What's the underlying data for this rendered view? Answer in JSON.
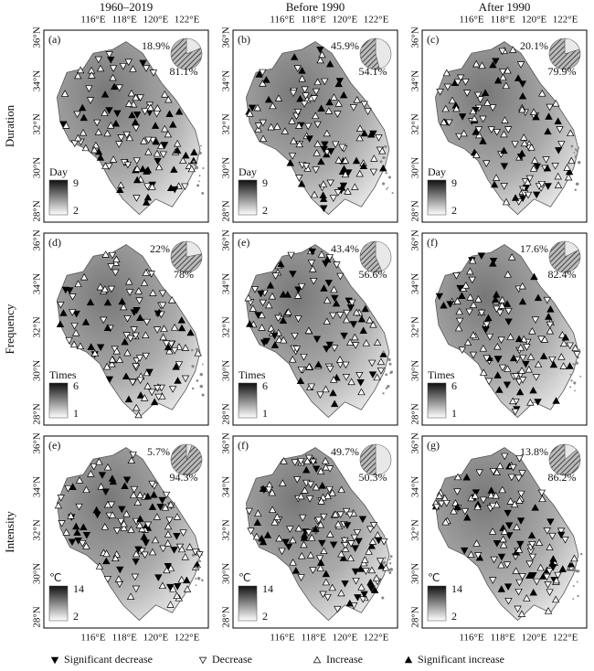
{
  "column_titles": [
    "1960–2019",
    "Before 1990",
    "After 1990"
  ],
  "lon_ticks": [
    "116°E",
    "118°E",
    "120°E",
    "122°E"
  ],
  "lat_ticks": [
    "36°N",
    "34°N",
    "32°N",
    "30°N",
    "28°N"
  ],
  "rows": [
    {
      "title": "Duration",
      "unit": "Day",
      "max": 9,
      "min": 2,
      "panels": [
        {
          "label": "(a)",
          "pie": {
            "values": [
              18.9,
              81.1
            ],
            "value_labels": [
              "18.9%",
              "81.1%"
            ]
          }
        },
        {
          "label": "(b)",
          "pie": {
            "values": [
              45.9,
              54.1
            ],
            "value_labels": [
              "45.9%",
              "54.1%"
            ]
          }
        },
        {
          "label": "(c)",
          "pie": {
            "values": [
              20.1,
              79.9
            ],
            "value_labels": [
              "20.1%",
              "79.9%"
            ]
          }
        }
      ]
    },
    {
      "title": "Frequency",
      "unit": "Times",
      "max": 6,
      "min": 1,
      "panels": [
        {
          "label": "(d)",
          "pie": {
            "values": [
              22,
              78
            ],
            "value_labels": [
              "22%",
              "78%"
            ]
          }
        },
        {
          "label": "(e)",
          "pie": {
            "values": [
              43.4,
              56.6
            ],
            "value_labels": [
              "43.4%",
              "56.6%"
            ]
          }
        },
        {
          "label": "(f)",
          "pie": {
            "values": [
              17.6,
              82.4
            ],
            "value_labels": [
              "17.6%",
              "82.4%"
            ]
          }
        }
      ]
    },
    {
      "title": "Intensity",
      "unit": "℃",
      "max": 14,
      "min": 2,
      "panels": [
        {
          "label": "(e)",
          "pie": {
            "values": [
              5.7,
              94.3
            ],
            "value_labels": [
              "5.7%",
              "94.3%"
            ]
          }
        },
        {
          "label": "(f)",
          "pie": {
            "values": [
              49.7,
              50.3
            ],
            "value_labels": [
              "49.7%",
              "50.3%"
            ]
          }
        },
        {
          "label": "(g)",
          "pie": {
            "values": [
              13.8,
              86.2
            ],
            "value_labels": [
              "13.8%",
              "86.2%"
            ]
          }
        }
      ]
    }
  ],
  "legend": [
    "Significant decrease",
    "Decrease",
    "Increase",
    "Significant increase"
  ]
}
